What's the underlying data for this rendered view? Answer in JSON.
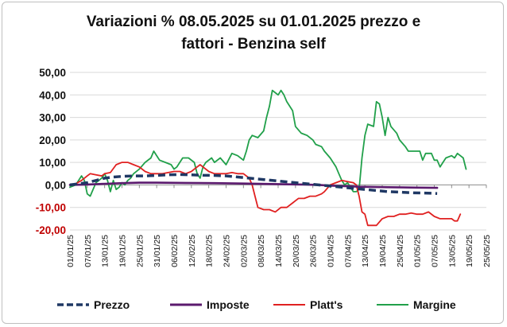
{
  "chart_data": {
    "type": "line",
    "title_line1": "Variazioni % 08.05.2025 su 01.01.2025 prezzo e",
    "title_line2": "fattori - Benzina self",
    "xlabel": "",
    "ylabel": "",
    "ylim": [
      -20,
      50
    ],
    "yticks": [
      "50,00",
      "40,00",
      "30,00",
      "20,00",
      "10,00",
      "0,00",
      "-10,00",
      "-20,00"
    ],
    "ytick_values": [
      50,
      40,
      30,
      20,
      10,
      0,
      -10,
      -20
    ],
    "ytick_colors": [
      "#111111",
      "#111111",
      "#111111",
      "#111111",
      "#111111",
      "#111111",
      "#c00000",
      "#c00000"
    ],
    "xticks": [
      "01/01/25",
      "07/01/25",
      "13/01/25",
      "19/01/25",
      "25/01/25",
      "31/01/25",
      "06/02/25",
      "12/02/25",
      "18/02/25",
      "24/02/25",
      "02/03/25",
      "08/03/25",
      "14/03/25",
      "20/03/25",
      "26/03/25",
      "01/04/25",
      "07/04/25",
      "13/04/25",
      "19/04/25",
      "25/04/25",
      "01/05/25",
      "07/05/25",
      "13/05/25",
      "19/05/25",
      "25/05/25"
    ],
    "xrange_days": [
      0,
      144
    ],
    "grid": "horizontal",
    "legend_position": "bottom",
    "series": [
      {
        "name": "Prezzo",
        "color": "#1f3864",
        "style": "dashed",
        "points": [
          [
            0,
            0
          ],
          [
            3,
            0.5
          ],
          [
            6,
            1
          ],
          [
            9,
            2
          ],
          [
            12,
            3
          ],
          [
            15,
            3.5
          ],
          [
            18,
            3.8
          ],
          [
            22,
            4
          ],
          [
            26,
            4
          ],
          [
            30,
            4.2
          ],
          [
            34,
            4.5
          ],
          [
            38,
            4.6
          ],
          [
            42,
            4.5
          ],
          [
            46,
            4.3
          ],
          [
            50,
            4.2
          ],
          [
            54,
            4
          ],
          [
            58,
            3.5
          ],
          [
            62,
            3
          ],
          [
            66,
            2.5
          ],
          [
            70,
            2
          ],
          [
            74,
            1.5
          ],
          [
            78,
            1
          ],
          [
            82,
            0.5
          ],
          [
            86,
            0
          ],
          [
            90,
            -0.5
          ],
          [
            94,
            -1
          ],
          [
            98,
            -1.5
          ],
          [
            102,
            -2
          ],
          [
            106,
            -2.5
          ],
          [
            110,
            -3
          ],
          [
            114,
            -3.2
          ],
          [
            118,
            -3.5
          ],
          [
            122,
            -3.6
          ],
          [
            125,
            -3.7
          ],
          [
            127,
            -3.8
          ]
        ]
      },
      {
        "name": "Imposte",
        "color": "#5b1a6e",
        "style": "solid",
        "points": [
          [
            0,
            0
          ],
          [
            6,
            0.2
          ],
          [
            12,
            0.5
          ],
          [
            18,
            0.8
          ],
          [
            24,
            1
          ],
          [
            30,
            1
          ],
          [
            40,
            0.9
          ],
          [
            50,
            0.8
          ],
          [
            60,
            0.6
          ],
          [
            70,
            0.4
          ],
          [
            80,
            0.2
          ],
          [
            86,
            0
          ],
          [
            90,
            -0.3
          ],
          [
            96,
            -0.6
          ],
          [
            100,
            -0.8
          ],
          [
            110,
            -1
          ],
          [
            120,
            -1.2
          ],
          [
            127,
            -1.3
          ]
        ]
      },
      {
        "name": "Platt's",
        "color": "#e02020",
        "style": "solid",
        "points": [
          [
            0,
            0
          ],
          [
            2,
            0.5
          ],
          [
            4,
            2
          ],
          [
            6,
            4
          ],
          [
            7,
            5
          ],
          [
            9,
            4.5
          ],
          [
            11,
            4
          ],
          [
            12,
            5
          ],
          [
            14,
            5.5
          ],
          [
            16,
            9
          ],
          [
            18,
            10
          ],
          [
            20,
            10
          ],
          [
            22,
            9
          ],
          [
            24,
            8
          ],
          [
            26,
            6
          ],
          [
            28,
            5
          ],
          [
            30,
            5
          ],
          [
            32,
            5
          ],
          [
            34,
            5.5
          ],
          [
            36,
            6
          ],
          [
            38,
            6
          ],
          [
            40,
            5
          ],
          [
            42,
            6
          ],
          [
            44,
            8
          ],
          [
            45,
            9
          ],
          [
            46,
            8
          ],
          [
            48,
            6
          ],
          [
            50,
            5
          ],
          [
            52,
            5
          ],
          [
            54,
            5
          ],
          [
            56,
            5.5
          ],
          [
            58,
            5
          ],
          [
            60,
            5
          ],
          [
            62,
            3
          ],
          [
            63,
            0
          ],
          [
            64,
            -5
          ],
          [
            65,
            -10
          ],
          [
            67,
            -11
          ],
          [
            69,
            -11
          ],
          [
            71,
            -12
          ],
          [
            73,
            -10
          ],
          [
            75,
            -10
          ],
          [
            77,
            -8
          ],
          [
            79,
            -6
          ],
          [
            81,
            -6
          ],
          [
            83,
            -5
          ],
          [
            85,
            -5
          ],
          [
            87,
            -4
          ],
          [
            88,
            -3
          ],
          [
            90,
            0
          ],
          [
            92,
            1
          ],
          [
            94,
            2
          ],
          [
            96,
            1.5
          ],
          [
            98,
            1
          ],
          [
            99,
            0
          ],
          [
            100,
            -5
          ],
          [
            101,
            -12
          ],
          [
            102,
            -13
          ],
          [
            103,
            -18
          ],
          [
            105,
            -18
          ],
          [
            106,
            -18
          ],
          [
            108,
            -15
          ],
          [
            110,
            -14
          ],
          [
            112,
            -14
          ],
          [
            114,
            -13
          ],
          [
            116,
            -13
          ],
          [
            118,
            -12.5
          ],
          [
            120,
            -13
          ],
          [
            122,
            -13
          ],
          [
            124,
            -12
          ],
          [
            126,
            -14
          ],
          [
            128,
            -15
          ],
          [
            130,
            -15
          ],
          [
            132,
            -15
          ],
          [
            133,
            -16
          ],
          [
            134,
            -16
          ],
          [
            135,
            -13
          ]
        ]
      },
      {
        "name": "Margine",
        "color": "#21a04a",
        "style": "solid",
        "points": [
          [
            0,
            -1
          ],
          [
            2,
            0
          ],
          [
            3,
            2
          ],
          [
            4,
            4
          ],
          [
            5,
            2
          ],
          [
            6,
            -4
          ],
          [
            7,
            -5
          ],
          [
            8,
            -2
          ],
          [
            9,
            1
          ],
          [
            10,
            2
          ],
          [
            11,
            3
          ],
          [
            12,
            5
          ],
          [
            13,
            2
          ],
          [
            14,
            -3
          ],
          [
            15,
            2
          ],
          [
            16,
            -2
          ],
          [
            17,
            -1
          ],
          [
            18,
            1
          ],
          [
            19,
            0
          ],
          [
            20,
            2
          ],
          [
            21,
            3
          ],
          [
            22,
            5
          ],
          [
            24,
            7
          ],
          [
            26,
            10
          ],
          [
            28,
            12
          ],
          [
            29,
            15
          ],
          [
            30,
            13
          ],
          [
            31,
            11
          ],
          [
            33,
            10
          ],
          [
            35,
            9
          ],
          [
            36,
            7
          ],
          [
            37,
            8
          ],
          [
            39,
            12
          ],
          [
            41,
            12
          ],
          [
            43,
            10
          ],
          [
            44,
            5
          ],
          [
            45,
            3
          ],
          [
            46,
            8
          ],
          [
            47,
            10
          ],
          [
            49,
            12
          ],
          [
            50,
            10
          ],
          [
            52,
            12
          ],
          [
            54,
            9
          ],
          [
            56,
            14
          ],
          [
            58,
            13
          ],
          [
            60,
            11
          ],
          [
            61,
            15
          ],
          [
            62,
            20
          ],
          [
            63,
            22
          ],
          [
            65,
            21
          ],
          [
            67,
            24
          ],
          [
            68,
            30
          ],
          [
            69,
            35
          ],
          [
            70,
            42
          ],
          [
            71,
            41
          ],
          [
            72,
            40
          ],
          [
            73,
            42
          ],
          [
            74,
            40
          ],
          [
            75,
            37
          ],
          [
            77,
            33
          ],
          [
            78,
            26
          ],
          [
            80,
            23
          ],
          [
            82,
            22
          ],
          [
            84,
            20
          ],
          [
            85,
            18
          ],
          [
            87,
            17
          ],
          [
            88,
            15
          ],
          [
            90,
            12
          ],
          [
            92,
            8
          ],
          [
            93,
            5
          ],
          [
            94,
            2
          ],
          [
            95,
            0
          ],
          [
            96,
            1
          ],
          [
            97,
            -1
          ],
          [
            98,
            -3
          ],
          [
            99,
            -3
          ],
          [
            100,
            -2
          ],
          [
            101,
            12
          ],
          [
            102,
            22
          ],
          [
            103,
            27
          ],
          [
            105,
            26
          ],
          [
            106,
            37
          ],
          [
            107,
            36
          ],
          [
            108,
            30
          ],
          [
            109,
            22
          ],
          [
            110,
            30
          ],
          [
            111,
            26
          ],
          [
            113,
            23
          ],
          [
            114,
            20
          ],
          [
            116,
            17
          ],
          [
            117,
            15
          ],
          [
            119,
            15
          ],
          [
            121,
            15
          ],
          [
            122,
            11
          ],
          [
            123,
            14
          ],
          [
            125,
            14
          ],
          [
            126,
            11
          ],
          [
            127,
            11
          ],
          [
            128,
            8
          ],
          [
            129,
            10
          ],
          [
            130,
            12
          ],
          [
            132,
            13
          ],
          [
            133,
            12
          ],
          [
            134,
            14
          ],
          [
            135,
            13
          ],
          [
            136,
            12
          ],
          [
            137,
            7
          ]
        ]
      }
    ]
  }
}
